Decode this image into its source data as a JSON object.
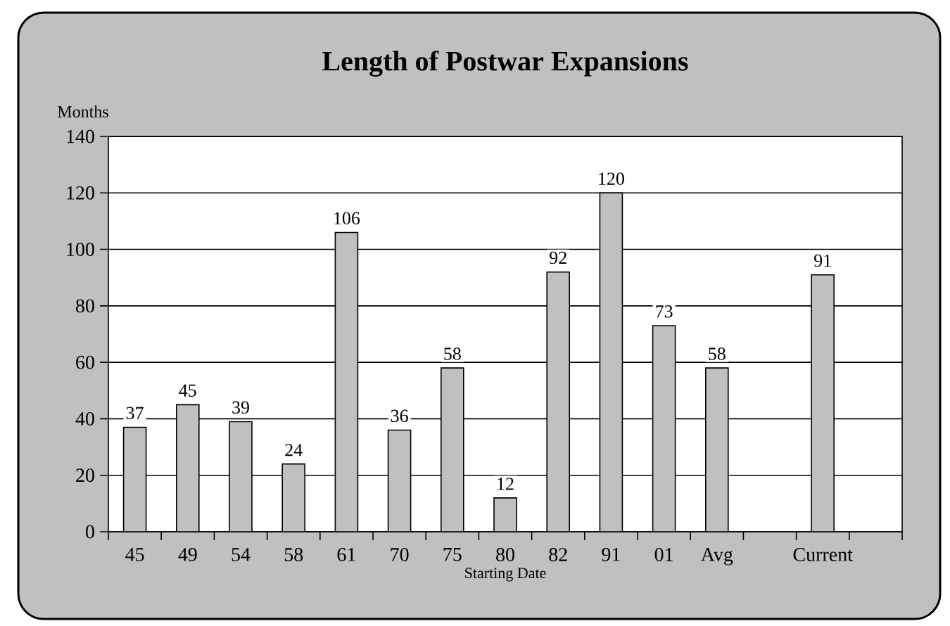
{
  "chart_data": {
    "type": "bar",
    "title": "Length of Postwar Expansions",
    "ylabel": "Months",
    "xlabel": "Starting Date",
    "categories": [
      "45",
      "49",
      "54",
      "58",
      "61",
      "70",
      "75",
      "80",
      "82",
      "91",
      "01",
      "Avg",
      null,
      "Current",
      null
    ],
    "values": [
      37,
      45,
      39,
      24,
      106,
      36,
      58,
      12,
      92,
      120,
      73,
      58,
      null,
      91,
      null
    ],
    "color": "#c0c0c0",
    "ylim": [
      0,
      140
    ],
    "yticks": [
      0,
      20,
      40,
      60,
      80,
      100,
      120,
      140
    ],
    "grid": "y",
    "data_labels": true
  }
}
